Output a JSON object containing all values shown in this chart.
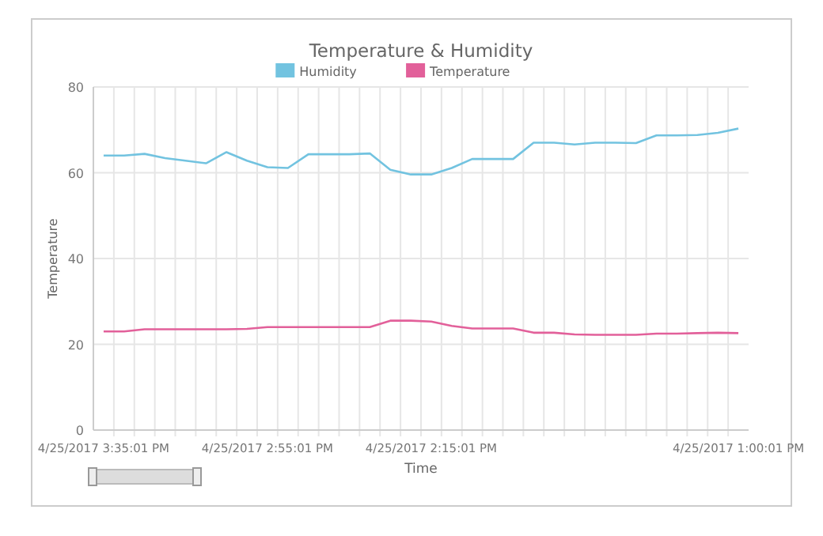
{
  "chart_data": {
    "type": "line",
    "title": "Temperature & Humidity",
    "xlabel": "Time",
    "ylabel": "Temperature",
    "categories": [
      "4/25/2017 3:35:01 PM",
      null,
      null,
      null,
      null,
      null,
      null,
      null,
      "4/25/2017 2:55:01 PM",
      null,
      null,
      null,
      null,
      null,
      null,
      null,
      "4/25/2017 2:15:01 PM",
      null,
      null,
      null,
      null,
      null,
      null,
      null,
      null,
      null,
      null,
      null,
      null,
      null,
      null,
      "4/25/2017 1:00:01 PM"
    ],
    "series": [
      {
        "name": "Humidity",
        "color": "#72c3e0",
        "values": [
          64,
          64,
          64.4,
          63.4,
          62.8,
          62.2,
          64.8,
          62.8,
          61.3,
          61.1,
          64.3,
          64.3,
          64.3,
          64.5,
          60.7,
          59.6,
          59.6,
          61.1,
          63.2,
          63.2,
          63.2,
          67,
          67,
          66.6,
          67,
          67,
          66.9,
          68.7,
          68.7,
          68.8,
          69.3,
          70.3
        ]
      },
      {
        "name": "Temperature",
        "color": "#e2609a",
        "values": [
          23,
          23,
          23.5,
          23.5,
          23.5,
          23.5,
          23.5,
          23.6,
          24,
          24,
          24,
          24,
          24,
          24,
          25.5,
          25.5,
          25.3,
          24.3,
          23.7,
          23.7,
          23.7,
          22.7,
          22.7,
          22.3,
          22.2,
          22.2,
          22.2,
          22.5,
          22.5,
          22.6,
          22.7,
          22.6
        ]
      }
    ],
    "ylim": [
      0,
      80
    ],
    "yticks": [
      0,
      20,
      40,
      60,
      80
    ],
    "grid": true,
    "legend": "top",
    "marker": "none",
    "line_style": "solid"
  }
}
